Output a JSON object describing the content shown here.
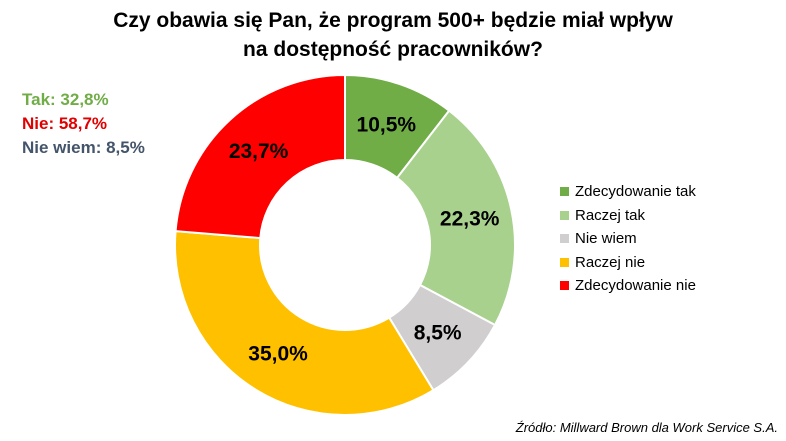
{
  "header": {
    "title_line1": "Czy obawia się Pan, że program 500+ będzie miał wpływ",
    "title_line2": "na dostępność pracowników?"
  },
  "summary": {
    "tak": {
      "text": "Tak: 32,8%",
      "color": "#70ad47"
    },
    "nie": {
      "text": "Nie: 58,7%",
      "color": "#e00000"
    },
    "nie_wiem": {
      "text": "Nie wiem: 8,5%",
      "color": "#44546a"
    }
  },
  "source": "Źródło: Millward Brown dla Work Service S.A.",
  "chart_data": {
    "type": "donut",
    "title": "Czy obawia się Pan, że program 500+ będzie miał wpływ na dostępność pracowników?",
    "legend_position": "right",
    "series": [
      {
        "name": "Zdecydowanie tak",
        "value": 10.5,
        "label": "10,5%",
        "color": "#70ad47"
      },
      {
        "name": "Raczej tak",
        "value": 22.3,
        "label": "22,3%",
        "color": "#a9d18e"
      },
      {
        "name": "Nie wiem",
        "value": 8.5,
        "label": "8,5%",
        "color": "#d0cece"
      },
      {
        "name": "Raczej nie",
        "value": 35.0,
        "label": "35,0%",
        "color": "#ffc000"
      },
      {
        "name": "Zdecydowanie nie",
        "value": 23.7,
        "label": "23,7%",
        "color": "#ff0000"
      }
    ]
  }
}
